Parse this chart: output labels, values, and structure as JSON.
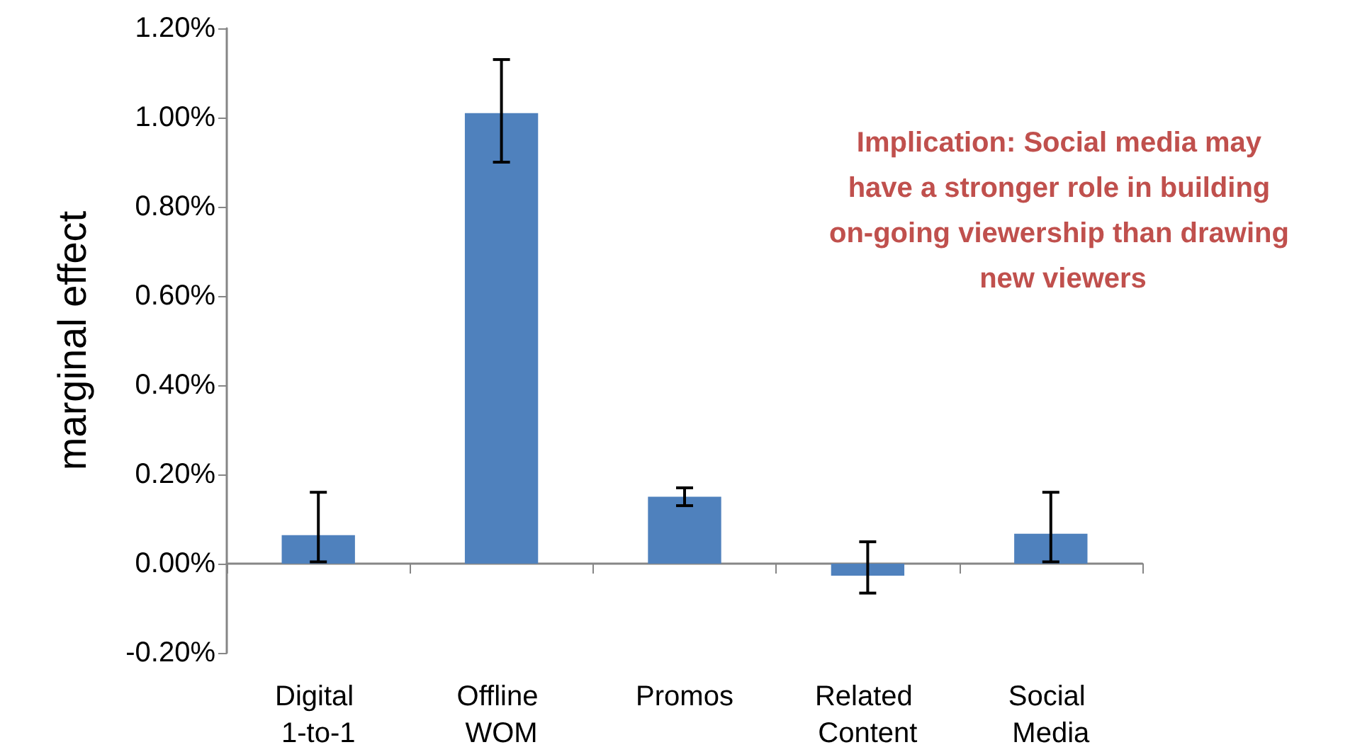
{
  "chart_data": {
    "type": "bar",
    "ylabel": "marginal effect",
    "categories": [
      "Digital 1-to-1",
      "Offline WOM",
      "Promos",
      "Related Content",
      "Social Media"
    ],
    "values": [
      0.064,
      1.01,
      0.15,
      -0.027,
      0.067
    ],
    "errors": [
      [
        0.004,
        0.16
      ],
      [
        0.9,
        1.13
      ],
      [
        0.13,
        0.17
      ],
      [
        -0.066,
        0.049
      ],
      [
        0.004,
        0.16
      ]
    ],
    "color": "#4f81bd",
    "ylim": [
      -0.2,
      1.2
    ],
    "yticks": [
      {
        "value": -0.2,
        "label": "-0.20%"
      },
      {
        "value": 0,
        "label": "0.00%"
      },
      {
        "value": 0.2,
        "label": "0.20%"
      },
      {
        "value": 0.4,
        "label": "0.40%"
      },
      {
        "value": 0.6,
        "label": "0.60%"
      },
      {
        "value": 0.8,
        "label": "0.80%"
      },
      {
        "value": 1.0,
        "label": "1.00%"
      },
      {
        "value": 1.2,
        "label": "1.20%"
      }
    ],
    "annotations": [
      "Implication: Social media may have a stronger role in building on-going viewership than drawing new viewers"
    ]
  }
}
